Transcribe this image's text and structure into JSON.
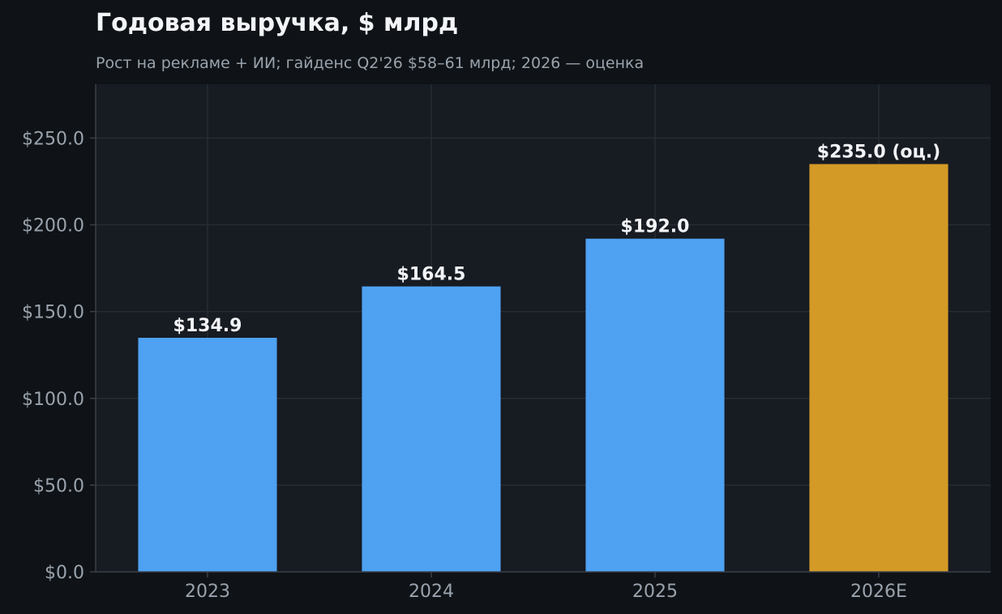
{
  "chart_data": {
    "type": "bar",
    "title": "Годовая выручка, $ млрд",
    "subtitle": "Рост на рекламе + ИИ; гайденс Q2'26 $58–61 млрд; 2026 — оценка",
    "xlabel": "",
    "ylabel": "",
    "categories": [
      "2023",
      "2024",
      "2025",
      "2026E"
    ],
    "values": [
      134.9,
      164.5,
      192.0,
      235.0
    ],
    "value_labels": [
      "$134.9",
      "$164.5",
      "$192.0",
      "$235.0 (оц.)"
    ],
    "bar_colors": [
      "#4fa1f2",
      "#4fa1f2",
      "#4fa1f2",
      "#d39a26"
    ],
    "ylim": [
      0,
      281
    ],
    "yticks": [
      0,
      50,
      100,
      150,
      200,
      250
    ],
    "ytick_labels": [
      "$0.0",
      "$50.0",
      "$100.0",
      "$150.0",
      "$200.0",
      "$250.0"
    ],
    "grid": true,
    "colors": {
      "background": "#0f1317",
      "plot_background": "#171b22",
      "grid": "#262c35",
      "axis": "#3a4049"
    }
  }
}
